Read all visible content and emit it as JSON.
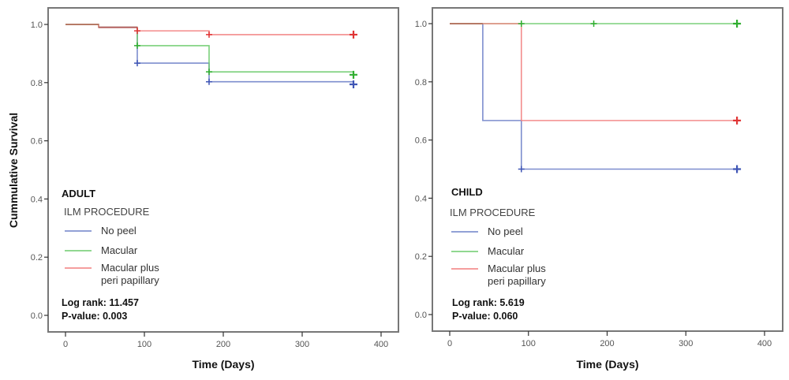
{
  "chart_data": [
    {
      "type": "line",
      "subtype": "kaplan-meier-step",
      "panel_label": "ADULT",
      "xlabel": "Time (Days)",
      "ylabel": "Cummulative Survival",
      "xlim": [
        0,
        400
      ],
      "ylim": [
        0.0,
        1.0
      ],
      "xticks": [
        "0",
        "100",
        "200",
        "300",
        "400"
      ],
      "yticks": [
        "0.0",
        "0.2",
        "0.4",
        "0.6",
        "0.8",
        "1.0"
      ],
      "grid": false,
      "legend": {
        "title": "ILM PROCEDURE",
        "placement": "bottom-left",
        "entries": [
          "No peel",
          "Macular",
          "Macular plus",
          "peri papillary"
        ]
      },
      "stats": {
        "log_rank": "Log rank: 11.457",
        "p_value": "P-value: 0.003"
      },
      "series": [
        {
          "name": "No peel",
          "color": "#6f82c9",
          "censor_color": "#3f55b5",
          "steps": [
            [
              0,
              1.0
            ],
            [
              42,
              0.99
            ],
            [
              91,
              0.867
            ],
            [
              182,
              0.803
            ]
          ],
          "end_x": 365,
          "censors": [
            [
              91,
              0.867
            ],
            [
              182,
              0.803
            ],
            [
              365,
              0.794
            ]
          ]
        },
        {
          "name": "Macular",
          "color": "#6dcb6d",
          "censor_color": "#2fae2f",
          "steps": [
            [
              0,
              1.0
            ],
            [
              42,
              0.99
            ],
            [
              91,
              0.927
            ],
            [
              182,
              0.837
            ]
          ],
          "end_x": 365,
          "censors": [
            [
              91,
              0.927
            ],
            [
              182,
              0.837
            ],
            [
              365,
              0.827
            ]
          ]
        },
        {
          "name": "Macular plus peri papillary",
          "color": "#f27f7f",
          "censor_color": "#e03434",
          "steps": [
            [
              0,
              1.0
            ],
            [
              42,
              0.99
            ],
            [
              91,
              0.978
            ],
            [
              182,
              0.965
            ]
          ],
          "end_x": 365,
          "censors": [
            [
              91,
              0.978
            ],
            [
              182,
              0.965
            ],
            [
              365,
              0.965
            ]
          ]
        }
      ]
    },
    {
      "type": "line",
      "subtype": "kaplan-meier-step",
      "panel_label": "CHILD",
      "xlabel": "Time (Days)",
      "ylabel": "",
      "xlim": [
        0,
        400
      ],
      "ylim": [
        0.0,
        1.0
      ],
      "xticks": [
        "0",
        "100",
        "200",
        "300",
        "400"
      ],
      "yticks": [
        "0.0",
        "0.2",
        "0.4",
        "0.6",
        "0.8",
        "1.0"
      ],
      "grid": false,
      "legend": {
        "title": "ILM PROCEDURE",
        "placement": "bottom-left",
        "entries": [
          "No peel",
          "Macular",
          "Macular plus",
          "peri papillary"
        ]
      },
      "stats": {
        "log_rank": "Log rank: 5.619",
        "p_value": "P-value: 0.060"
      },
      "series": [
        {
          "name": "No peel",
          "color": "#6f82c9",
          "censor_color": "#3f55b5",
          "steps": [
            [
              0,
              1.0
            ],
            [
              42,
              0.667
            ],
            [
              91,
              0.5
            ]
          ],
          "end_x": 365,
          "censors": [
            [
              91,
              0.5
            ],
            [
              365,
              0.5
            ]
          ]
        },
        {
          "name": "Macular",
          "color": "#6dcb6d",
          "censor_color": "#2fae2f",
          "steps": [
            [
              0,
              1.0
            ]
          ],
          "end_x": 365,
          "censors": [
            [
              91,
              1.0
            ],
            [
              183,
              1.0
            ],
            [
              365,
              1.0
            ]
          ]
        },
        {
          "name": "Macular plus peri papillary",
          "color": "#f27f7f",
          "censor_color": "#e03434",
          "steps": [
            [
              0,
              1.0
            ],
            [
              91,
              0.667
            ]
          ],
          "end_x": 365,
          "censors": [
            [
              365,
              0.667
            ]
          ]
        }
      ]
    }
  ],
  "colors": {
    "overlap": "#b5735f",
    "frame": "#777777",
    "axis": "#333333"
  }
}
